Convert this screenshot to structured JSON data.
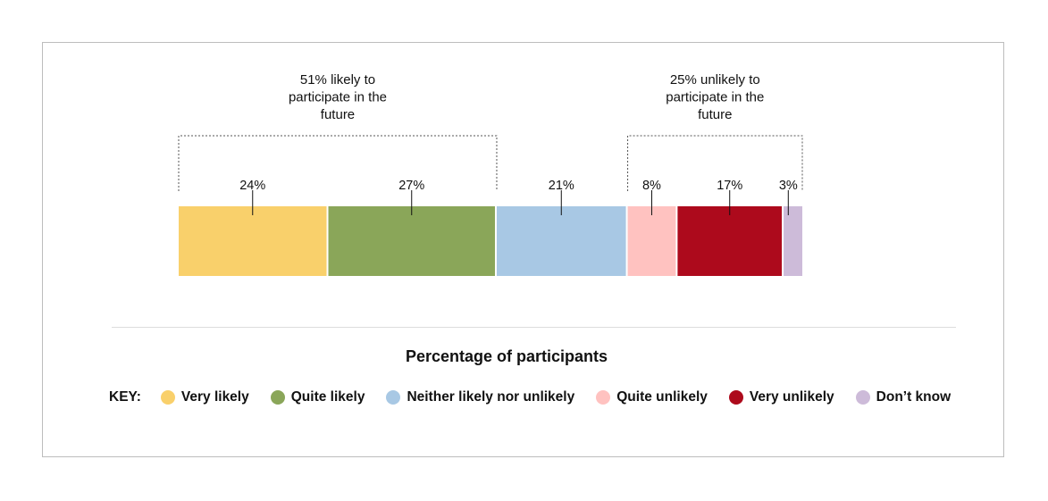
{
  "chart_data": {
    "type": "bar",
    "orientation": "horizontal-stacked",
    "categories": [
      "Very likely",
      "Quite likely",
      "Neither likely nor unlikely",
      "Quite unlikely",
      "Very unlikely",
      "Don’t know"
    ],
    "values": [
      24,
      27,
      21,
      8,
      17,
      3
    ],
    "value_labels": [
      "24%",
      "27%",
      "21%",
      "8%",
      "17%",
      "3%"
    ],
    "colors": [
      "#f9d06b",
      "#8aa659",
      "#a8c8e4",
      "#ffc2c0",
      "#ad0a1c",
      "#cdbbd9"
    ],
    "xlabel": "Percentage of participants",
    "annotations": [
      {
        "lines": [
          "51% likely to",
          "participate in the",
          "future"
        ],
        "from": 0,
        "to": 1
      },
      {
        "lines": [
          "25% unlikely to",
          "participate in the",
          "future"
        ],
        "from": 3,
        "to": 5
      }
    ],
    "legend": {
      "label": "KEY:",
      "placement": "bottom"
    }
  }
}
